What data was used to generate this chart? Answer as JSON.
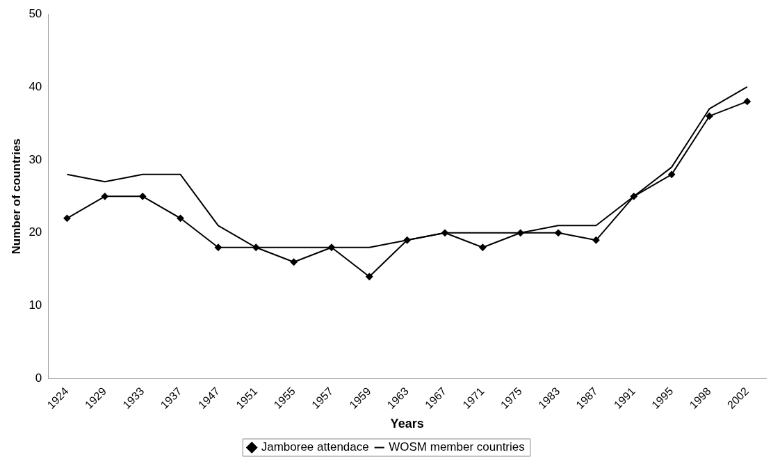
{
  "chart_data": {
    "type": "line",
    "xlabel": "Years",
    "ylabel": "Number of countries",
    "categories": [
      "1924",
      "1929",
      "1933",
      "1937",
      "1947",
      "1951",
      "1955",
      "1957",
      "1959",
      "1963",
      "1967",
      "1971",
      "1975",
      "1983",
      "1987",
      "1991",
      "1995",
      "1998",
      "2002"
    ],
    "series": [
      {
        "name": "Jamboree attendace",
        "color": "#000000",
        "marker": "diamond",
        "values": [
          22,
          25,
          25,
          22,
          18,
          18,
          16,
          18,
          14,
          19,
          20,
          18,
          20,
          20,
          19,
          25,
          28,
          36,
          38
        ]
      },
      {
        "name": "WOSM member countries",
        "color": "#000000",
        "marker": "none",
        "values": [
          28,
          27,
          28,
          28,
          21,
          18,
          18,
          18,
          18,
          19,
          20,
          20,
          20,
          21,
          21,
          25,
          29,
          37,
          40
        ]
      }
    ],
    "ylim": [
      0,
      50
    ],
    "yticks": [
      0,
      10,
      20,
      30,
      40,
      50
    ],
    "grid": false,
    "legend": "bottom",
    "line_style": "solid"
  }
}
